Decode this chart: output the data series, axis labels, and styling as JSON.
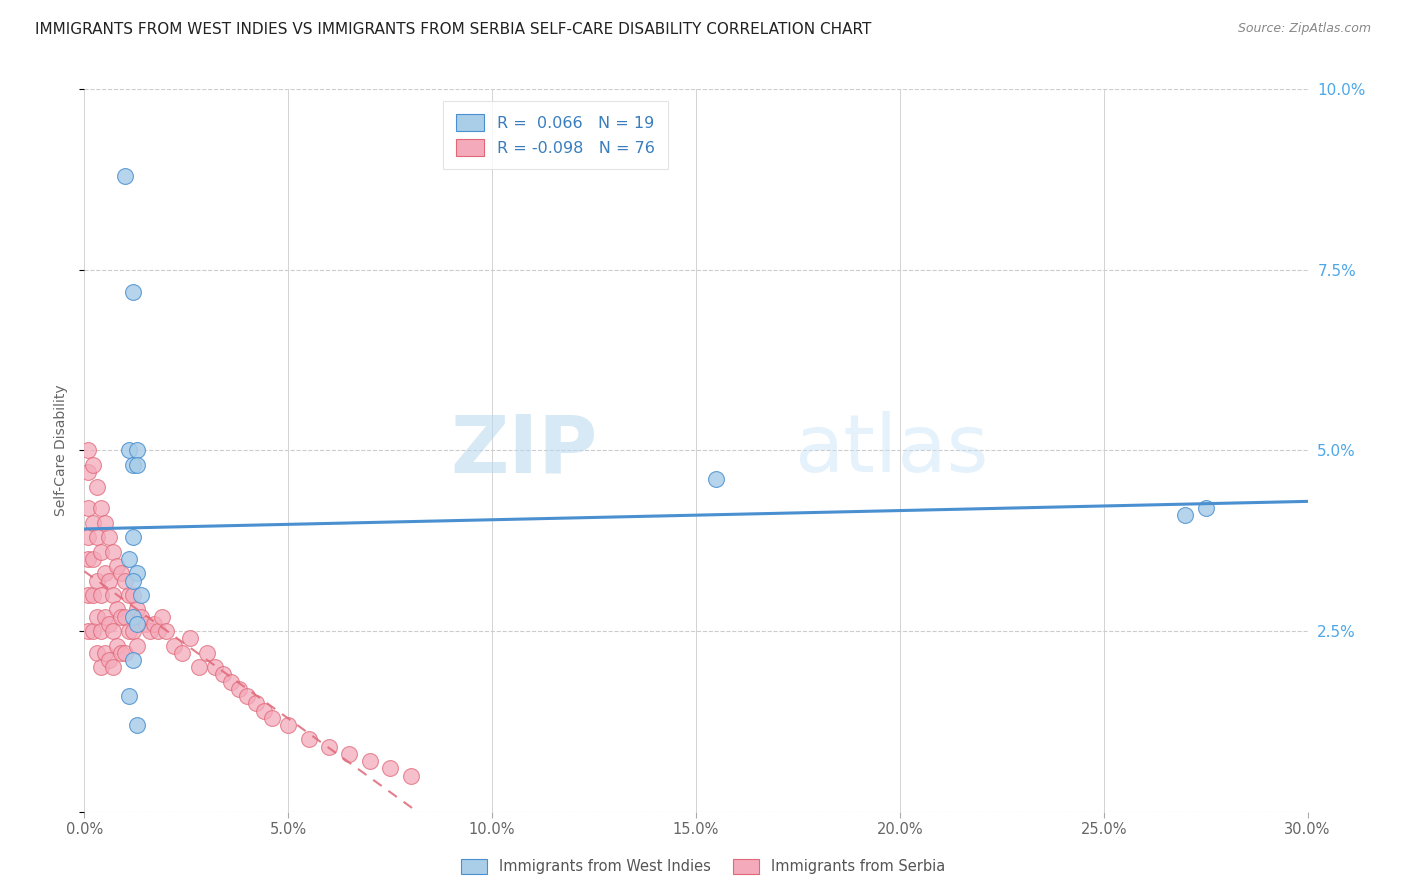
{
  "title": "IMMIGRANTS FROM WEST INDIES VS IMMIGRANTS FROM SERBIA SELF-CARE DISABILITY CORRELATION CHART",
  "source": "Source: ZipAtlas.com",
  "ylabel": "Self-Care Disability",
  "xlim": [
    0,
    0.3
  ],
  "ylim": [
    0,
    0.1
  ],
  "xticks": [
    0.0,
    0.05,
    0.1,
    0.15,
    0.2,
    0.25,
    0.3
  ],
  "xticklabels": [
    "0.0%",
    "5.0%",
    "10.0%",
    "15.0%",
    "20.0%",
    "25.0%",
    "30.0%"
  ],
  "yticks": [
    0.025,
    0.05,
    0.075,
    0.1
  ],
  "yticklabels": [
    "2.5%",
    "5.0%",
    "7.5%",
    "10.0%"
  ],
  "legend_blue_label": "R =  0.066   N = 19",
  "legend_pink_label": "R = -0.098   N = 76",
  "legend_bottom_blue": "Immigrants from West Indies",
  "legend_bottom_pink": "Immigrants from Serbia",
  "blue_color": "#aacde8",
  "pink_color": "#f4aabb",
  "trend_blue_color": "#4a90d0",
  "trend_pink_color": "#e06878",
  "background": "#ffffff",
  "watermark_zip": "ZIP",
  "watermark_atlas": "atlas",
  "west_indies_x": [
    0.01,
    0.012,
    0.011,
    0.012,
    0.013,
    0.013,
    0.012,
    0.011,
    0.013,
    0.012,
    0.014,
    0.012,
    0.013,
    0.155,
    0.27,
    0.275,
    0.012,
    0.011,
    0.013
  ],
  "west_indies_y": [
    0.088,
    0.072,
    0.05,
    0.048,
    0.05,
    0.048,
    0.038,
    0.035,
    0.033,
    0.032,
    0.03,
    0.027,
    0.026,
    0.046,
    0.041,
    0.042,
    0.021,
    0.016,
    0.012
  ],
  "serbia_x": [
    0.001,
    0.001,
    0.001,
    0.001,
    0.001,
    0.001,
    0.001,
    0.002,
    0.002,
    0.002,
    0.002,
    0.002,
    0.003,
    0.003,
    0.003,
    0.003,
    0.003,
    0.004,
    0.004,
    0.004,
    0.004,
    0.004,
    0.005,
    0.005,
    0.005,
    0.005,
    0.006,
    0.006,
    0.006,
    0.006,
    0.007,
    0.007,
    0.007,
    0.007,
    0.008,
    0.008,
    0.008,
    0.009,
    0.009,
    0.009,
    0.01,
    0.01,
    0.01,
    0.011,
    0.011,
    0.012,
    0.012,
    0.013,
    0.013,
    0.014,
    0.015,
    0.016,
    0.017,
    0.018,
    0.019,
    0.02,
    0.022,
    0.024,
    0.026,
    0.028,
    0.03,
    0.032,
    0.034,
    0.036,
    0.038,
    0.04,
    0.042,
    0.044,
    0.046,
    0.05,
    0.055,
    0.06,
    0.065,
    0.07,
    0.075,
    0.08
  ],
  "serbia_y": [
    0.05,
    0.047,
    0.042,
    0.038,
    0.035,
    0.03,
    0.025,
    0.048,
    0.04,
    0.035,
    0.03,
    0.025,
    0.045,
    0.038,
    0.032,
    0.027,
    0.022,
    0.042,
    0.036,
    0.03,
    0.025,
    0.02,
    0.04,
    0.033,
    0.027,
    0.022,
    0.038,
    0.032,
    0.026,
    0.021,
    0.036,
    0.03,
    0.025,
    0.02,
    0.034,
    0.028,
    0.023,
    0.033,
    0.027,
    0.022,
    0.032,
    0.027,
    0.022,
    0.03,
    0.025,
    0.03,
    0.025,
    0.028,
    0.023,
    0.027,
    0.026,
    0.025,
    0.026,
    0.025,
    0.027,
    0.025,
    0.023,
    0.022,
    0.024,
    0.02,
    0.022,
    0.02,
    0.019,
    0.018,
    0.017,
    0.016,
    0.015,
    0.014,
    0.013,
    0.012,
    0.01,
    0.009,
    0.008,
    0.007,
    0.006,
    0.005
  ]
}
